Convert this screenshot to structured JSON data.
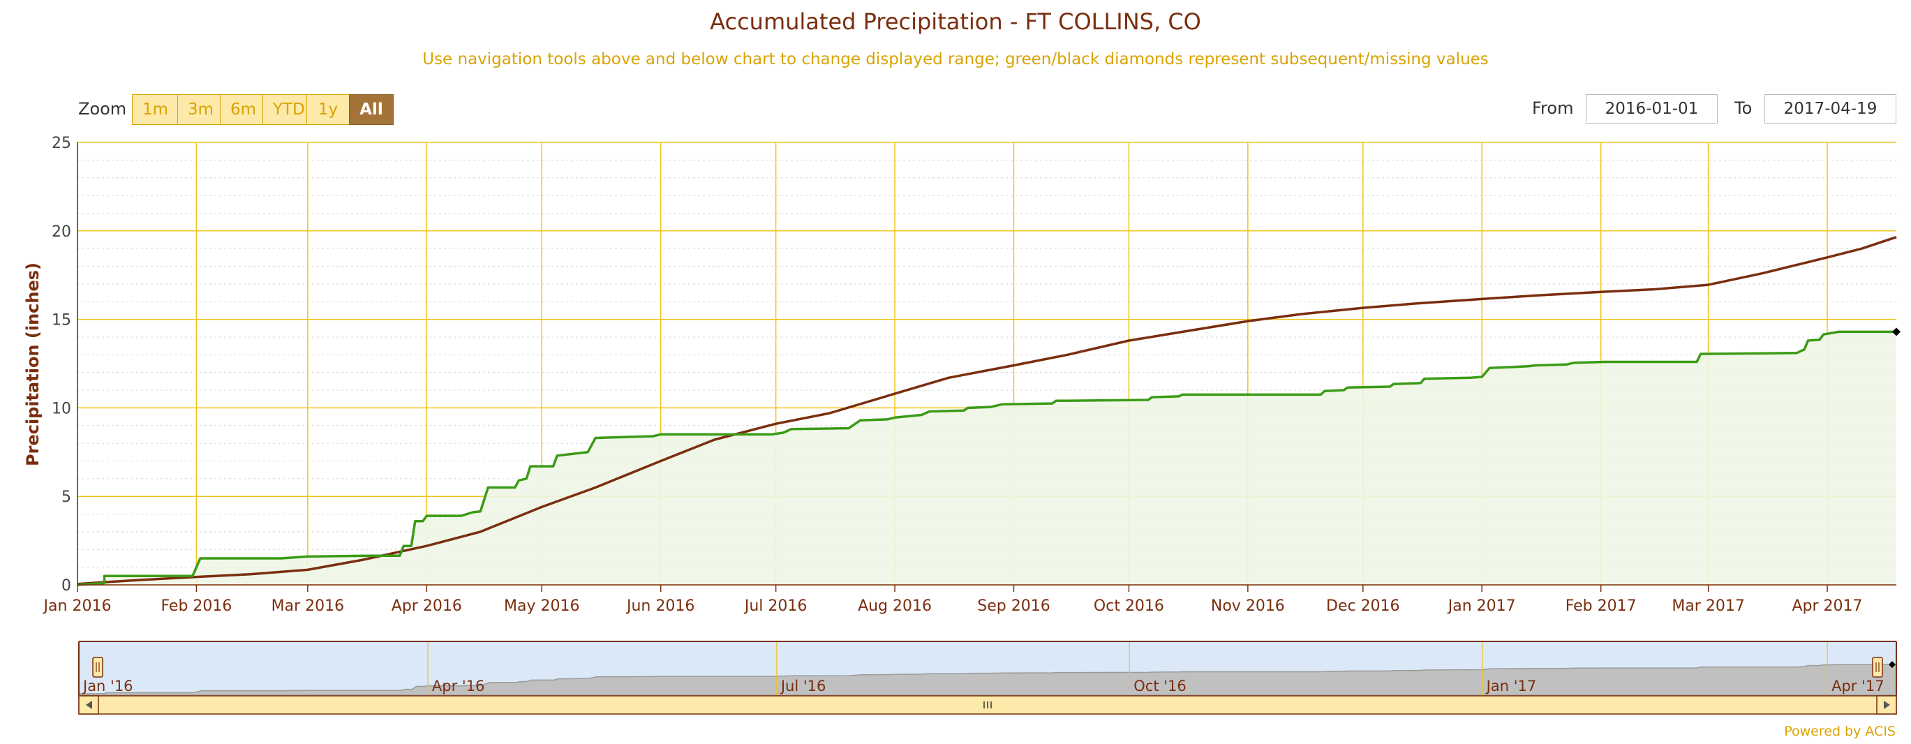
{
  "header": {
    "title": "Accumulated Precipitation - FT COLLINS, CO",
    "subtitle": "Use navigation tools above and below chart to change displayed range; green/black diamonds represent subsequent/missing values"
  },
  "zoom": {
    "label": "Zoom",
    "buttons": [
      "1m",
      "3m",
      "6m",
      "YTD",
      "1y",
      "All"
    ],
    "active": "All"
  },
  "range": {
    "from_label": "From",
    "from_value": "2016-01-01",
    "to_label": "To",
    "to_value": "2017-04-19"
  },
  "footer": "Powered by ACIS",
  "colors": {
    "observed": "#3b9b16",
    "normal": "#7a2e0e",
    "grid": "#f0c419",
    "fill": "#eef6e6",
    "navigator_fill": "#c0c0c0",
    "selection": "#dbe8f7",
    "scrollbar": "#fde9a9"
  },
  "chart_data": {
    "type": "line",
    "title": "Accumulated Precipitation - FT COLLINS, CO",
    "ylabel": "Precipitation (inches)",
    "xlabel": "",
    "ylim": [
      0,
      25
    ],
    "yticks": [
      0,
      5,
      10,
      15,
      20,
      25
    ],
    "xlim": [
      "2016-01-01",
      "2017-04-19"
    ],
    "xticks": [
      {
        "date": "2016-01-01",
        "label": "Jan 2016"
      },
      {
        "date": "2016-02-01",
        "label": "Feb 2016"
      },
      {
        "date": "2016-03-01",
        "label": "Mar 2016"
      },
      {
        "date": "2016-04-01",
        "label": "Apr 2016"
      },
      {
        "date": "2016-05-01",
        "label": "May 2016"
      },
      {
        "date": "2016-06-01",
        "label": "Jun 2016"
      },
      {
        "date": "2016-07-01",
        "label": "Jul 2016"
      },
      {
        "date": "2016-08-01",
        "label": "Aug 2016"
      },
      {
        "date": "2016-09-01",
        "label": "Sep 2016"
      },
      {
        "date": "2016-10-01",
        "label": "Oct 2016"
      },
      {
        "date": "2016-11-01",
        "label": "Nov 2016"
      },
      {
        "date": "2016-12-01",
        "label": "Dec 2016"
      },
      {
        "date": "2017-01-01",
        "label": "Jan 2017"
      },
      {
        "date": "2017-02-01",
        "label": "Feb 2017"
      },
      {
        "date": "2017-03-01",
        "label": "Mar 2017"
      },
      {
        "date": "2017-04-01",
        "label": "Apr 2017"
      }
    ],
    "grid": true,
    "series": [
      {
        "key": "observed",
        "type": "step-area",
        "points": [
          [
            "2016-01-01",
            0.0
          ],
          [
            "2016-01-08",
            0.1
          ],
          [
            "2016-01-08",
            0.5
          ],
          [
            "2016-01-31",
            0.5
          ],
          [
            "2016-02-02",
            1.5
          ],
          [
            "2016-02-23",
            1.5
          ],
          [
            "2016-03-01",
            1.6
          ],
          [
            "2016-03-18",
            1.65
          ],
          [
            "2016-03-25",
            1.65
          ],
          [
            "2016-03-26",
            2.2
          ],
          [
            "2016-03-28",
            2.2
          ],
          [
            "2016-03-29",
            3.6
          ],
          [
            "2016-03-31",
            3.6
          ],
          [
            "2016-04-01",
            3.9
          ],
          [
            "2016-04-10",
            3.9
          ],
          [
            "2016-04-13",
            4.1
          ],
          [
            "2016-04-15",
            4.15
          ],
          [
            "2016-04-17",
            5.5
          ],
          [
            "2016-04-24",
            5.5
          ],
          [
            "2016-04-25",
            5.9
          ],
          [
            "2016-04-27",
            6.0
          ],
          [
            "2016-04-28",
            6.7
          ],
          [
            "2016-05-04",
            6.7
          ],
          [
            "2016-05-05",
            7.3
          ],
          [
            "2016-05-13",
            7.5
          ],
          [
            "2016-05-15",
            8.3
          ],
          [
            "2016-05-30",
            8.4
          ],
          [
            "2016-06-01",
            8.5
          ],
          [
            "2016-06-30",
            8.5
          ],
          [
            "2016-07-03",
            8.6
          ],
          [
            "2016-07-05",
            8.8
          ],
          [
            "2016-07-20",
            8.85
          ],
          [
            "2016-07-23",
            9.3
          ],
          [
            "2016-07-30",
            9.35
          ],
          [
            "2016-08-01",
            9.45
          ],
          [
            "2016-08-08",
            9.6
          ],
          [
            "2016-08-10",
            9.8
          ],
          [
            "2016-08-19",
            9.85
          ],
          [
            "2016-08-20",
            10.0
          ],
          [
            "2016-08-26",
            10.05
          ],
          [
            "2016-08-29",
            10.2
          ],
          [
            "2016-09-11",
            10.25
          ],
          [
            "2016-09-12",
            10.4
          ],
          [
            "2016-10-06",
            10.45
          ],
          [
            "2016-10-07",
            10.6
          ],
          [
            "2016-10-14",
            10.65
          ],
          [
            "2016-10-15",
            10.75
          ],
          [
            "2016-11-20",
            10.75
          ],
          [
            "2016-11-21",
            10.95
          ],
          [
            "2016-11-26",
            11.0
          ],
          [
            "2016-11-27",
            11.15
          ],
          [
            "2016-12-08",
            11.2
          ],
          [
            "2016-12-09",
            11.35
          ],
          [
            "2016-12-16",
            11.4
          ],
          [
            "2016-12-17",
            11.65
          ],
          [
            "2016-12-29",
            11.7
          ],
          [
            "2017-01-01",
            11.75
          ],
          [
            "2017-01-03",
            12.25
          ],
          [
            "2017-01-08",
            12.3
          ],
          [
            "2017-01-13",
            12.35
          ],
          [
            "2017-01-15",
            12.4
          ],
          [
            "2017-01-23",
            12.45
          ],
          [
            "2017-01-25",
            12.55
          ],
          [
            "2017-02-02",
            12.6
          ],
          [
            "2017-02-26",
            12.6
          ],
          [
            "2017-02-27",
            13.05
          ],
          [
            "2017-03-24",
            13.1
          ],
          [
            "2017-03-26",
            13.3
          ],
          [
            "2017-03-27",
            13.8
          ],
          [
            "2017-03-30",
            13.85
          ],
          [
            "2017-03-31",
            14.15
          ],
          [
            "2017-04-04",
            14.3
          ],
          [
            "2017-04-19",
            14.3
          ]
        ]
      },
      {
        "key": "normal",
        "type": "line",
        "points": [
          [
            "2016-01-01",
            0.05
          ],
          [
            "2016-01-15",
            0.25
          ],
          [
            "2016-02-01",
            0.45
          ],
          [
            "2016-02-15",
            0.6
          ],
          [
            "2016-03-01",
            0.85
          ],
          [
            "2016-03-15",
            1.4
          ],
          [
            "2016-04-01",
            2.2
          ],
          [
            "2016-04-15",
            3.0
          ],
          [
            "2016-05-01",
            4.4
          ],
          [
            "2016-05-15",
            5.5
          ],
          [
            "2016-06-01",
            7.0
          ],
          [
            "2016-06-15",
            8.2
          ],
          [
            "2016-07-01",
            9.1
          ],
          [
            "2016-07-15",
            9.7
          ],
          [
            "2016-08-01",
            10.8
          ],
          [
            "2016-08-15",
            11.7
          ],
          [
            "2016-09-01",
            12.4
          ],
          [
            "2016-09-15",
            13.0
          ],
          [
            "2016-10-01",
            13.8
          ],
          [
            "2016-10-15",
            14.3
          ],
          [
            "2016-11-01",
            14.9
          ],
          [
            "2016-11-15",
            15.3
          ],
          [
            "2016-12-01",
            15.65
          ],
          [
            "2016-12-15",
            15.9
          ],
          [
            "2017-01-01",
            16.15
          ],
          [
            "2017-01-15",
            16.35
          ],
          [
            "2017-02-01",
            16.55
          ],
          [
            "2017-02-15",
            16.7
          ],
          [
            "2017-03-01",
            16.95
          ],
          [
            "2017-03-15",
            17.6
          ],
          [
            "2017-04-01",
            18.5
          ],
          [
            "2017-04-10",
            19.0
          ],
          [
            "2017-04-19",
            19.65
          ]
        ]
      }
    ],
    "markers": [
      {
        "date": "2017-04-19",
        "value": 14.3,
        "shape": "diamond",
        "color": "#000000"
      }
    ],
    "navigator": {
      "labels": [
        {
          "date": "2016-01-01",
          "label": "Jan '16"
        },
        {
          "date": "2016-04-01",
          "label": "Apr '16"
        },
        {
          "date": "2016-07-01",
          "label": "Jul '16"
        },
        {
          "date": "2016-10-01",
          "label": "Oct '16"
        },
        {
          "date": "2017-01-01",
          "label": "Jan '17"
        },
        {
          "date": "2017-04-01",
          "label": "Apr '17"
        }
      ],
      "selection": [
        "2016-01-01",
        "2017-04-19"
      ]
    }
  }
}
